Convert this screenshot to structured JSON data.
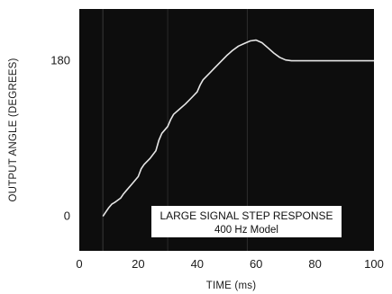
{
  "chart_data": {
    "type": "line",
    "title": "",
    "xlabel": "TIME (ms)",
    "ylabel": "OUTPUT ANGLE (DEGREES)",
    "xlim": [
      0,
      100
    ],
    "ylim": [
      -40,
      240
    ],
    "x_ticks": [
      "0",
      "20",
      "40",
      "60",
      "80",
      "100"
    ],
    "y_ticks": [
      "0",
      "180"
    ],
    "grid": false,
    "background_color": "#0d0d0d",
    "trace_color": "#e6e6e6",
    "annotation": {
      "line1": "LARGE SIGNAL STEP RESPONSE",
      "line2": "400 Hz Model"
    },
    "series": [
      {
        "x": [
          8,
          9,
          10,
          11,
          12,
          14,
          15,
          16,
          18,
          20,
          21,
          22,
          24,
          26,
          27,
          28,
          30,
          31,
          32,
          34,
          36,
          38,
          40,
          41,
          42,
          44,
          46,
          48,
          50,
          52,
          54,
          56,
          58,
          60,
          62,
          64,
          66,
          68,
          70,
          72,
          75,
          80,
          85,
          90,
          95,
          100
        ],
        "y": [
          0,
          5,
          10,
          14,
          16,
          21,
          26,
          30,
          38,
          46,
          55,
          60,
          67,
          76,
          88,
          96,
          104,
          112,
          118,
          124,
          130,
          137,
          144,
          152,
          158,
          165,
          172,
          179,
          186,
          192,
          197,
          200,
          203,
          204,
          201,
          195,
          189,
          184,
          181,
          180,
          180,
          180,
          180,
          180,
          180,
          180
        ]
      }
    ]
  }
}
